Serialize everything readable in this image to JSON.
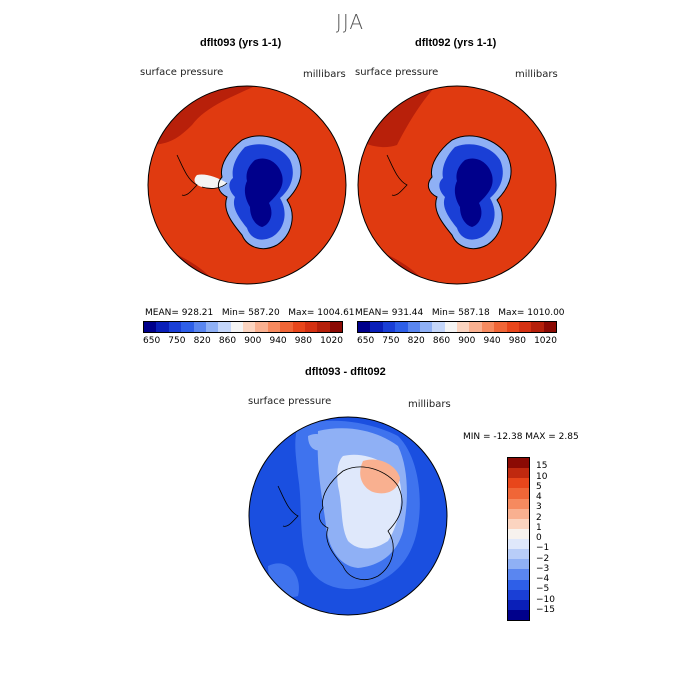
{
  "figure": {
    "season": "JJA"
  },
  "panel1": {
    "title": "dflt093 (yrs 1-1)",
    "variable": "surface pressure",
    "units": "millibars",
    "mean_label": "MEAN= 928.21",
    "min_label": "Min= 587.20",
    "max_label": "Max= 1004.61"
  },
  "panel2": {
    "title": "dflt092 (yrs 1-1)",
    "variable": "surface pressure",
    "units": "millibars",
    "mean_label": "MEAN= 931.44",
    "min_label": "Min= 587.18",
    "max_label": "Max= 1010.00"
  },
  "diff": {
    "title": "dflt093 - dflt092",
    "variable": "surface pressure",
    "units": "millibars",
    "minmax_label": "MIN = -12.38 MAX =   2.85"
  },
  "colorbar_main": {
    "ticks": [
      "650",
      "750",
      "820",
      "860",
      "900",
      "940",
      "980",
      "1020"
    ],
    "colors": [
      "#00008b",
      "#0a1fb8",
      "#1a3fd6",
      "#2e5fe8",
      "#5a86f0",
      "#8fb0f5",
      "#c4d6fa",
      "#f4f4f4",
      "#fbd4c0",
      "#f9b090",
      "#f68a5f",
      "#f06637",
      "#e8461b",
      "#d43112",
      "#b5200b",
      "#8b0a04"
    ]
  },
  "colorbar_diff": {
    "labels": [
      "15",
      "10",
      "5",
      "4",
      "3",
      "2",
      "1",
      "0",
      "−1",
      "−2",
      "−3",
      "−4",
      "−5",
      "−10",
      "−15"
    ],
    "colors": [
      "#8b0a04",
      "#c0290f",
      "#e8461b",
      "#f06637",
      "#f68a5f",
      "#f9b090",
      "#fbd4c0",
      "#f7f2ee",
      "#dfe8fb",
      "#b8cdf8",
      "#8fb0f5",
      "#5a86f0",
      "#2e5fe8",
      "#1a3fd6",
      "#0a1fb8",
      "#00008b"
    ]
  },
  "map_colors": {
    "ocean_high": "#e03a10",
    "ocean_very_high": "#b8200a",
    "ice_low": "#00008b",
    "ice_mid": "#1a3fd6",
    "ice_edge": "#8fb0f5",
    "diff_neg_big": "#1a4fe0",
    "diff_neg_mid": "#3f73ee",
    "diff_neg_small": "#8fb0f5",
    "diff_neutral": "#dfe8fb",
    "diff_pos": "#f9b090"
  }
}
